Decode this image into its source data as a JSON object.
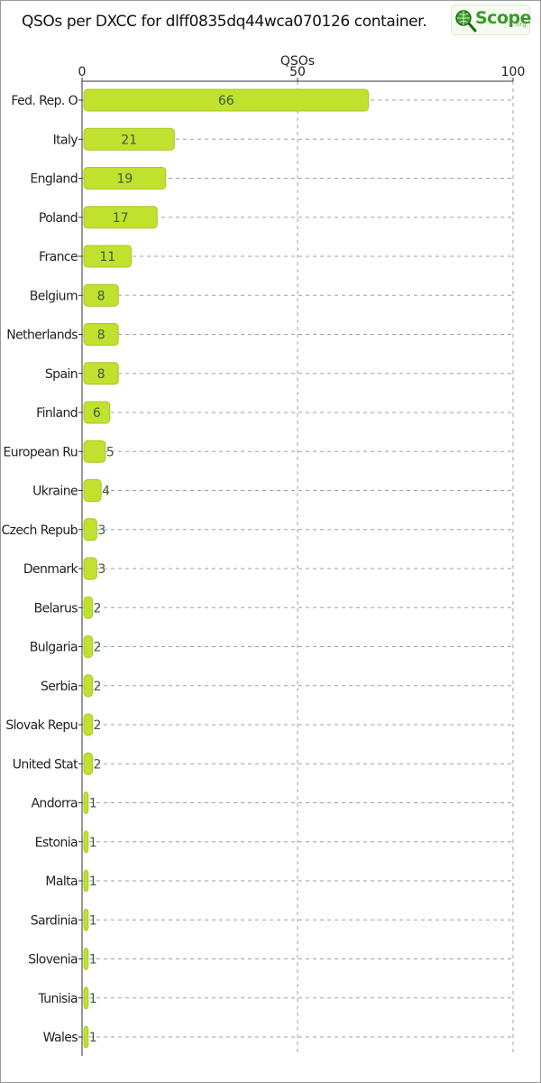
{
  "header": {
    "title": "QSOs per DXCC for dlff0835dq44wca070126 container.",
    "logo": {
      "name": "Scope",
      "suffix": ".org"
    }
  },
  "colors": {
    "bar": "#c0e12e",
    "bar_stroke": "#a7c826",
    "grid": "#a0a0a0",
    "axis": "#333333",
    "label_text": "#3a5a3a"
  },
  "chart_data": {
    "type": "bar",
    "orientation": "horizontal",
    "title": "QSOs per DXCC for dlff0835dq44wca070126 container.",
    "xlabel": "QSOs",
    "ylabel": "",
    "xlim": [
      0,
      100
    ],
    "xticks": [
      0,
      50,
      100
    ],
    "grid": true,
    "categories": [
      "Fed. Rep. O",
      "Italy",
      "England",
      "Poland",
      "France",
      "Belgium",
      "Netherlands",
      "Spain",
      "Finland",
      "European Ru",
      "Ukraine",
      "Czech Repub",
      "Denmark",
      "Belarus",
      "Bulgaria",
      "Serbia",
      "Slovak Repu",
      "United Stat",
      "Andorra",
      "Estonia",
      "Malta",
      "Sardinia",
      "Slovenia",
      "Tunisia",
      "Wales"
    ],
    "values": [
      66,
      21,
      19,
      17,
      11,
      8,
      8,
      8,
      6,
      5,
      4,
      3,
      3,
      2,
      2,
      2,
      2,
      2,
      1,
      1,
      1,
      1,
      1,
      1,
      1
    ]
  }
}
